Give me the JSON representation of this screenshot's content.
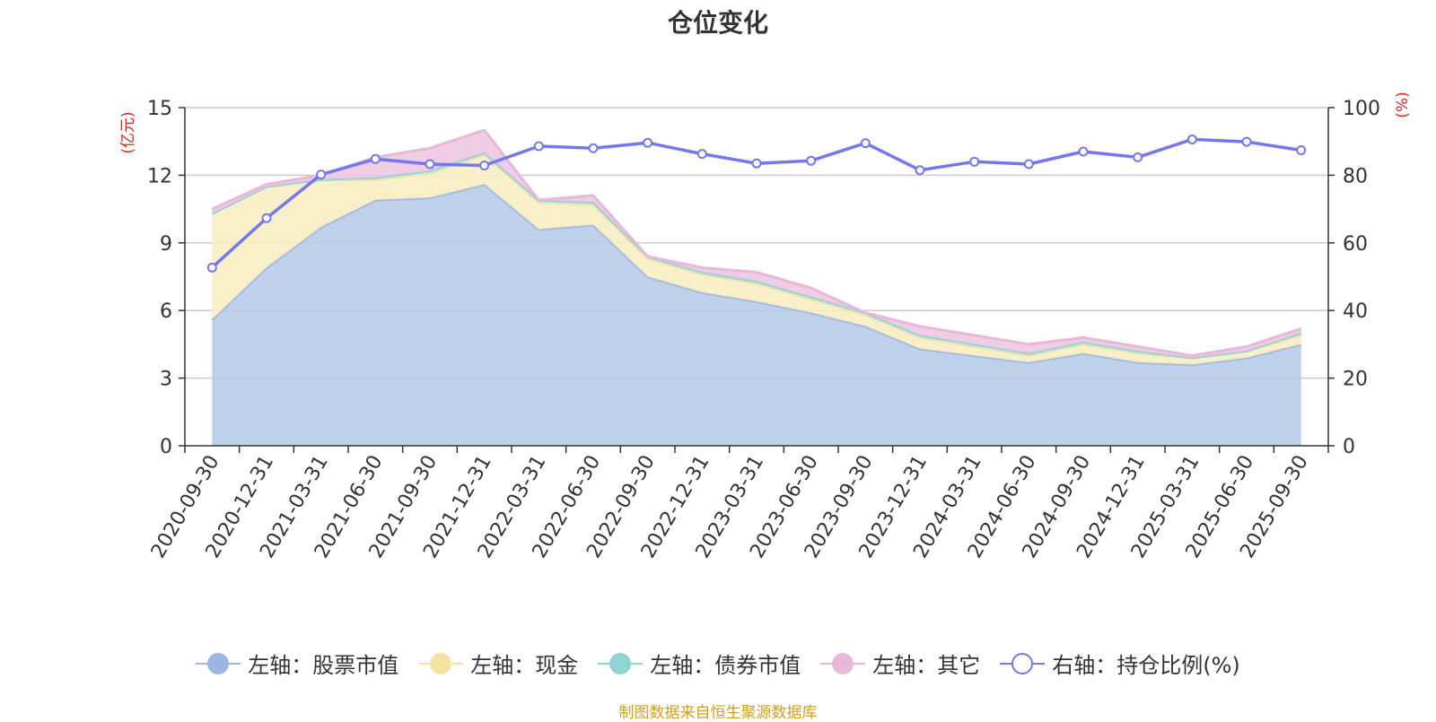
{
  "chart_data": {
    "type": "area",
    "title": "仓位变化",
    "source": "制图数据来自恒生聚源数据库",
    "left_axis": {
      "unit": "(亿元)",
      "ylim": [
        0,
        15
      ],
      "ticks": [
        0,
        3,
        6,
        9,
        12,
        15
      ]
    },
    "right_axis": {
      "unit": "(%)",
      "ylim": [
        0,
        100
      ],
      "ticks": [
        0,
        20,
        40,
        60,
        80,
        100
      ]
    },
    "categories": [
      "2020-09-30",
      "2020-12-31",
      "2021-03-31",
      "2021-06-30",
      "2021-09-30",
      "2021-12-31",
      "2022-03-31",
      "2022-06-30",
      "2022-09-30",
      "2022-12-31",
      "2023-03-31",
      "2023-06-30",
      "2023-09-30",
      "2023-12-31",
      "2024-03-31",
      "2024-06-30",
      "2024-09-30",
      "2024-12-31",
      "2025-03-31",
      "2025-06-30",
      "2025-09-30"
    ],
    "series": [
      {
        "name": "左轴：股票市值",
        "axis": "left",
        "kind": "stacked-area",
        "color": "#9bb6e0",
        "fill": "#b8cbe9",
        "values": [
          5.6,
          7.9,
          9.7,
          10.9,
          11.0,
          11.6,
          9.6,
          9.8,
          7.5,
          6.8,
          6.4,
          5.9,
          5.3,
          4.3,
          4.0,
          3.7,
          4.1,
          3.7,
          3.6,
          3.9,
          4.5
        ]
      },
      {
        "name": "左轴：现金",
        "axis": "left",
        "kind": "stacked-area",
        "color": "#f5e3a3",
        "fill": "#f8edc3",
        "values": [
          4.7,
          3.6,
          2.1,
          0.9,
          1.1,
          1.3,
          1.2,
          0.9,
          0.8,
          0.8,
          0.8,
          0.6,
          0.5,
          0.5,
          0.4,
          0.3,
          0.4,
          0.4,
          0.3,
          0.3,
          0.4
        ]
      },
      {
        "name": "左轴：债券市值",
        "axis": "left",
        "kind": "stacked-area",
        "color": "#8ed4d0",
        "fill": "#bde6e3",
        "values": [
          0.0,
          0.0,
          0.0,
          0.1,
          0.1,
          0.1,
          0.1,
          0.1,
          0.1,
          0.1,
          0.1,
          0.1,
          0.1,
          0.1,
          0.1,
          0.1,
          0.1,
          0.1,
          0.0,
          0.0,
          0.1
        ]
      },
      {
        "name": "左轴：其它",
        "axis": "left",
        "kind": "stacked-area",
        "color": "#e8b7d9",
        "fill": "#ecc8e2",
        "values": [
          0.2,
          0.1,
          0.2,
          0.9,
          1.0,
          1.0,
          0.0,
          0.3,
          0.0,
          0.2,
          0.4,
          0.4,
          0.0,
          0.4,
          0.4,
          0.4,
          0.2,
          0.2,
          0.1,
          0.2,
          0.2
        ]
      },
      {
        "name": "右轴：持仓比例(%)",
        "axis": "right",
        "kind": "line",
        "color": "#7577ee",
        "values": [
          52.7,
          67.3,
          80.2,
          84.8,
          83.3,
          82.9,
          88.6,
          88.0,
          89.6,
          86.3,
          83.5,
          84.3,
          89.5,
          81.5,
          84.0,
          83.3,
          87.0,
          85.3,
          90.6,
          89.9,
          87.4
        ]
      }
    ]
  }
}
